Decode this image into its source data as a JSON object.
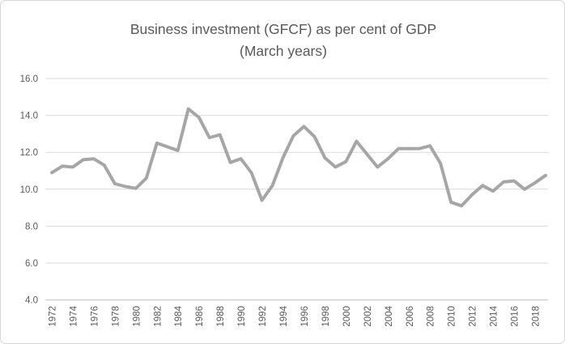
{
  "chart_data": {
    "type": "line",
    "title_line1": "Business investment (GFCF) as per cent of GDP",
    "title_line2": "(March years)",
    "xlabel": "",
    "ylabel": "",
    "x_unit": "March years",
    "x": [
      1972,
      1973,
      1974,
      1975,
      1976,
      1977,
      1978,
      1979,
      1980,
      1981,
      1982,
      1983,
      1984,
      1985,
      1986,
      1987,
      1988,
      1989,
      1990,
      1991,
      1992,
      1993,
      1994,
      1995,
      1996,
      1997,
      1998,
      1999,
      2000,
      2001,
      2002,
      2003,
      2004,
      2005,
      2006,
      2007,
      2008,
      2009,
      2010,
      2011,
      2012,
      2013,
      2014,
      2015,
      2016,
      2017,
      2018,
      2019
    ],
    "values": [
      10.9,
      11.25,
      11.2,
      11.6,
      11.65,
      11.3,
      10.3,
      10.15,
      10.05,
      10.6,
      12.5,
      12.3,
      12.1,
      14.35,
      13.9,
      12.8,
      12.95,
      11.45,
      11.65,
      10.9,
      9.4,
      10.2,
      11.7,
      12.9,
      13.4,
      12.85,
      11.7,
      11.2,
      11.5,
      12.6,
      11.9,
      11.2,
      11.65,
      12.2,
      12.2,
      12.2,
      12.35,
      11.4,
      9.3,
      9.1,
      9.7,
      10.2,
      9.9,
      10.4,
      10.45,
      10.0,
      10.35,
      10.75
    ],
    "y_tick_labels": [
      "16.0",
      "14.0",
      "12.0",
      "10.0",
      "8.0",
      "6.0",
      "4.0"
    ],
    "y_ticks": [
      16.0,
      14.0,
      12.0,
      10.0,
      8.0,
      6.0,
      4.0
    ],
    "x_tick_labels": [
      "1972",
      "1974",
      "1976",
      "1978",
      "1980",
      "1982",
      "1984",
      "1986",
      "1988",
      "1990",
      "1992",
      "1994",
      "1996",
      "1998",
      "2000",
      "2002",
      "2004",
      "2006",
      "2008",
      "2010",
      "2012",
      "2014",
      "2016",
      "2018"
    ],
    "ylim": [
      4.0,
      16.0
    ],
    "grid": true,
    "legend": "none",
    "line_color": "#a6a6a6",
    "gridline_color": "#d9d9d9",
    "axis_line_color": "#bfbfbf",
    "text_color": "#595959"
  }
}
